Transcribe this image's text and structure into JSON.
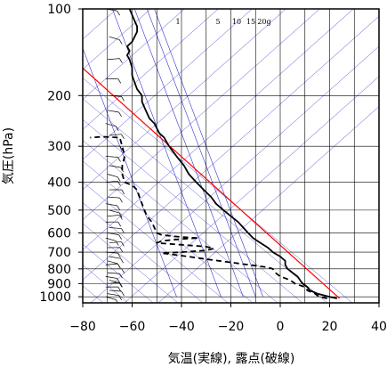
{
  "chart_data": {
    "type": "line",
    "title": "",
    "xlabel": "気温(実線), 露点(破線)",
    "ylabel": "気圧(hPa)",
    "xlim": [
      -80,
      40
    ],
    "ylim": [
      1050,
      100
    ],
    "y_scale": "log",
    "x_ticks": [
      -80,
      -60,
      -40,
      -20,
      0,
      20,
      40
    ],
    "x_tick_labels": [
      "−80",
      "−60",
      "−40",
      "−20",
      "0",
      "20",
      "40"
    ],
    "y_ticks": [
      100,
      200,
      300,
      400,
      500,
      600,
      700,
      800,
      900,
      1000
    ],
    "y_tick_labels": [
      "100",
      "200",
      "300",
      "400",
      "500",
      "600",
      "700",
      "800",
      "900",
      "1000"
    ],
    "mixing_ratio_labels": [
      "1",
      "5",
      "10",
      "15",
      "20g"
    ],
    "colors": {
      "temperature": "#000000",
      "dewpoint": "#000000",
      "reference_line": "#ff0000",
      "background_lines": "#3333cc",
      "grid": "#000000"
    },
    "series": [
      {
        "style": "solid",
        "points": [
          [
            23,
            1013
          ],
          [
            20,
            1000
          ],
          [
            15,
            975
          ],
          [
            12,
            950
          ],
          [
            11,
            925
          ],
          [
            9,
            900
          ],
          [
            8,
            875
          ],
          [
            7,
            850
          ],
          [
            5,
            825
          ],
          [
            3,
            800
          ],
          [
            2,
            775
          ],
          [
            2,
            750
          ],
          [
            0,
            725
          ],
          [
            -3,
            700
          ],
          [
            -5,
            675
          ],
          [
            -8,
            650
          ],
          [
            -11,
            625
          ],
          [
            -13,
            600
          ],
          [
            -15,
            575
          ],
          [
            -17,
            550
          ],
          [
            -20,
            525
          ],
          [
            -23,
            500
          ],
          [
            -26,
            475
          ],
          [
            -28,
            450
          ],
          [
            -31,
            425
          ],
          [
            -34,
            400
          ],
          [
            -37,
            375
          ],
          [
            -39,
            350
          ],
          [
            -42,
            325
          ],
          [
            -45,
            300
          ],
          [
            -46,
            290
          ],
          [
            -47,
            280
          ],
          [
            -49,
            270
          ],
          [
            -50,
            260
          ],
          [
            -51,
            250
          ],
          [
            -53,
            240
          ],
          [
            -54,
            230
          ],
          [
            -55,
            220
          ],
          [
            -56,
            210
          ],
          [
            -56,
            200
          ],
          [
            -58,
            190
          ],
          [
            -59,
            180
          ],
          [
            -60,
            170
          ],
          [
            -60,
            160
          ],
          [
            -61,
            150
          ],
          [
            -62,
            145
          ],
          [
            -61,
            140
          ],
          [
            -62,
            135
          ],
          [
            -60,
            130
          ],
          [
            -59,
            125
          ],
          [
            -58,
            120
          ],
          [
            -58,
            115
          ],
          [
            -59,
            110
          ],
          [
            -60,
            105
          ],
          [
            -61,
            100
          ]
        ]
      },
      {
        "style": "dashed",
        "points": [
          [
            19,
            1013
          ],
          [
            16,
            1000
          ],
          [
            15,
            990
          ],
          [
            14,
            975
          ],
          [
            11,
            950
          ],
          [
            10,
            925
          ],
          [
            6,
            900
          ],
          [
            4,
            875
          ],
          [
            0,
            850
          ],
          [
            -2,
            825
          ],
          [
            -3,
            800
          ],
          [
            -5,
            790
          ],
          [
            -10,
            780
          ],
          [
            -20,
            760
          ],
          [
            -30,
            740
          ],
          [
            -40,
            720
          ],
          [
            -48,
            705
          ],
          [
            -40,
            700
          ],
          [
            -30,
            690
          ],
          [
            -27,
            680
          ],
          [
            -30,
            670
          ],
          [
            -40,
            660
          ],
          [
            -50,
            650
          ],
          [
            -48,
            640
          ],
          [
            -40,
            630
          ],
          [
            -33,
            625
          ],
          [
            -40,
            620
          ],
          [
            -48,
            610
          ],
          [
            -50,
            600
          ],
          [
            -51,
            575
          ],
          [
            -52,
            550
          ],
          [
            -54,
            525
          ],
          [
            -55,
            500
          ],
          [
            -56,
            475
          ],
          [
            -57,
            450
          ],
          [
            -58,
            425
          ],
          [
            -60,
            410
          ],
          [
            -63,
            400
          ],
          [
            -64,
            375
          ],
          [
            -64,
            350
          ],
          [
            -63,
            325
          ],
          [
            -64,
            300
          ],
          [
            -65,
            280
          ],
          [
            -72,
            278
          ],
          [
            -77,
            280
          ]
        ]
      }
    ]
  }
}
